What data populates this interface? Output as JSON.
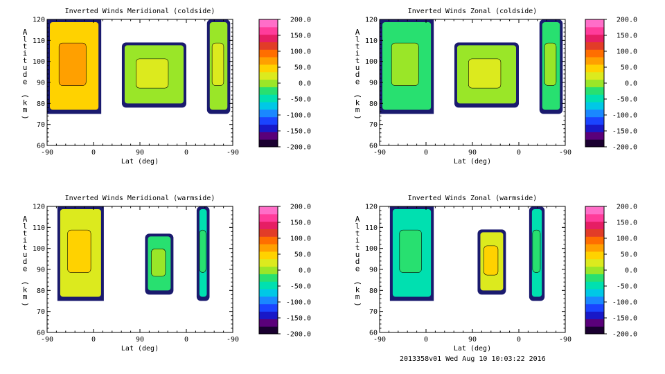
{
  "footer": "2013358v01 Wed Aug 10 10:03:22 2016",
  "chart_data": [
    {
      "type": "heatmap",
      "title": "Inverted Winds Meridional (coldside)",
      "xlabel": "Lat (deg)",
      "ylabel": "Altitude (km)",
      "x_ticks": [
        "-90",
        "0",
        "90",
        "0",
        "-90"
      ],
      "y_ticks": [
        "60",
        "70",
        "80",
        "90",
        "100",
        "110",
        "120"
      ],
      "ylim": [
        60,
        120
      ],
      "colorbar_ticks": [
        "200.0",
        "150.0",
        "100.0",
        "50.0",
        "0.0",
        "-50.0",
        "-100.0",
        "-150.0",
        "-200.0"
      ],
      "colorbar_range": [
        -200,
        200
      ],
      "regions": [
        {
          "lat_from": -90,
          "lat_to": 15,
          "alt_from": 75,
          "alt_to": 120,
          "mean_value": 40
        },
        {
          "lat_from": 55,
          "lat_to": 0,
          "alt_from": 78,
          "alt_to": 109,
          "mean_value": 5
        },
        {
          "lat_from": -40,
          "lat_to": -85,
          "alt_from": 75,
          "alt_to": 120,
          "mean_value": -10
        }
      ]
    },
    {
      "type": "heatmap",
      "title": "Inverted Winds Zonal (coldside)",
      "xlabel": "Lat (deg)",
      "ylabel": "Altitude (km)",
      "x_ticks": [
        "-90",
        "0",
        "90",
        "0",
        "-90"
      ],
      "y_ticks": [
        "60",
        "70",
        "80",
        "90",
        "100",
        "110",
        "120"
      ],
      "ylim": [
        60,
        120
      ],
      "colorbar_ticks": [
        "200.0",
        "150.0",
        "100.0",
        "50.0",
        "0.0",
        "-50.0",
        "-100.0",
        "-150.0",
        "-200.0"
      ],
      "colorbar_range": [
        -200,
        200
      ],
      "regions": [
        {
          "lat_from": -90,
          "lat_to": 15,
          "alt_from": 75,
          "alt_to": 120,
          "mean_value": -20
        },
        {
          "lat_from": 55,
          "lat_to": 0,
          "alt_from": 78,
          "alt_to": 109,
          "mean_value": -10
        },
        {
          "lat_from": -40,
          "lat_to": -85,
          "alt_from": 75,
          "alt_to": 120,
          "mean_value": -30
        }
      ]
    },
    {
      "type": "heatmap",
      "title": "Inverted Winds Meridional (warmside)",
      "xlabel": "Lat (deg)",
      "ylabel": "Altitude (km)",
      "x_ticks": [
        "-90",
        "0",
        "90",
        "0",
        "-90"
      ],
      "y_ticks": [
        "60",
        "70",
        "80",
        "90",
        "100",
        "110",
        "120"
      ],
      "ylim": [
        60,
        120
      ],
      "colorbar_ticks": [
        "200.0",
        "150.0",
        "100.0",
        "50.0",
        "0.0",
        "-50.0",
        "-100.0",
        "-150.0",
        "-200.0"
      ],
      "colorbar_range": [
        -200,
        200
      ],
      "regions": [
        {
          "lat_from": -70,
          "lat_to": 20,
          "alt_from": 75,
          "alt_to": 120,
          "mean_value": 25
        },
        {
          "lat_from": 80,
          "lat_to": 25,
          "alt_from": 78,
          "alt_to": 107,
          "mean_value": -15
        },
        {
          "lat_from": -20,
          "lat_to": -45,
          "alt_from": 75,
          "alt_to": 120,
          "mean_value": -40
        }
      ]
    },
    {
      "type": "heatmap",
      "title": "Inverted Winds Zonal (warmside)",
      "xlabel": "Lat (deg)",
      "ylabel": "Altitude (km)",
      "x_ticks": [
        "-90",
        "0",
        "90",
        "0",
        "-90"
      ],
      "y_ticks": [
        "60",
        "70",
        "80",
        "90",
        "100",
        "110",
        "120"
      ],
      "ylim": [
        60,
        120
      ],
      "colorbar_ticks": [
        "200.0",
        "150.0",
        "100.0",
        "50.0",
        "0.0",
        "-50.0",
        "-100.0",
        "-150.0",
        "-200.0"
      ],
      "colorbar_range": [
        -200,
        200
      ],
      "regions": [
        {
          "lat_from": -70,
          "lat_to": 15,
          "alt_from": 75,
          "alt_to": 120,
          "mean_value": -40
        },
        {
          "lat_from": 80,
          "lat_to": 25,
          "alt_from": 78,
          "alt_to": 109,
          "mean_value": 20
        },
        {
          "lat_from": -20,
          "lat_to": -50,
          "alt_from": 75,
          "alt_to": 120,
          "mean_value": -45
        }
      ]
    }
  ]
}
